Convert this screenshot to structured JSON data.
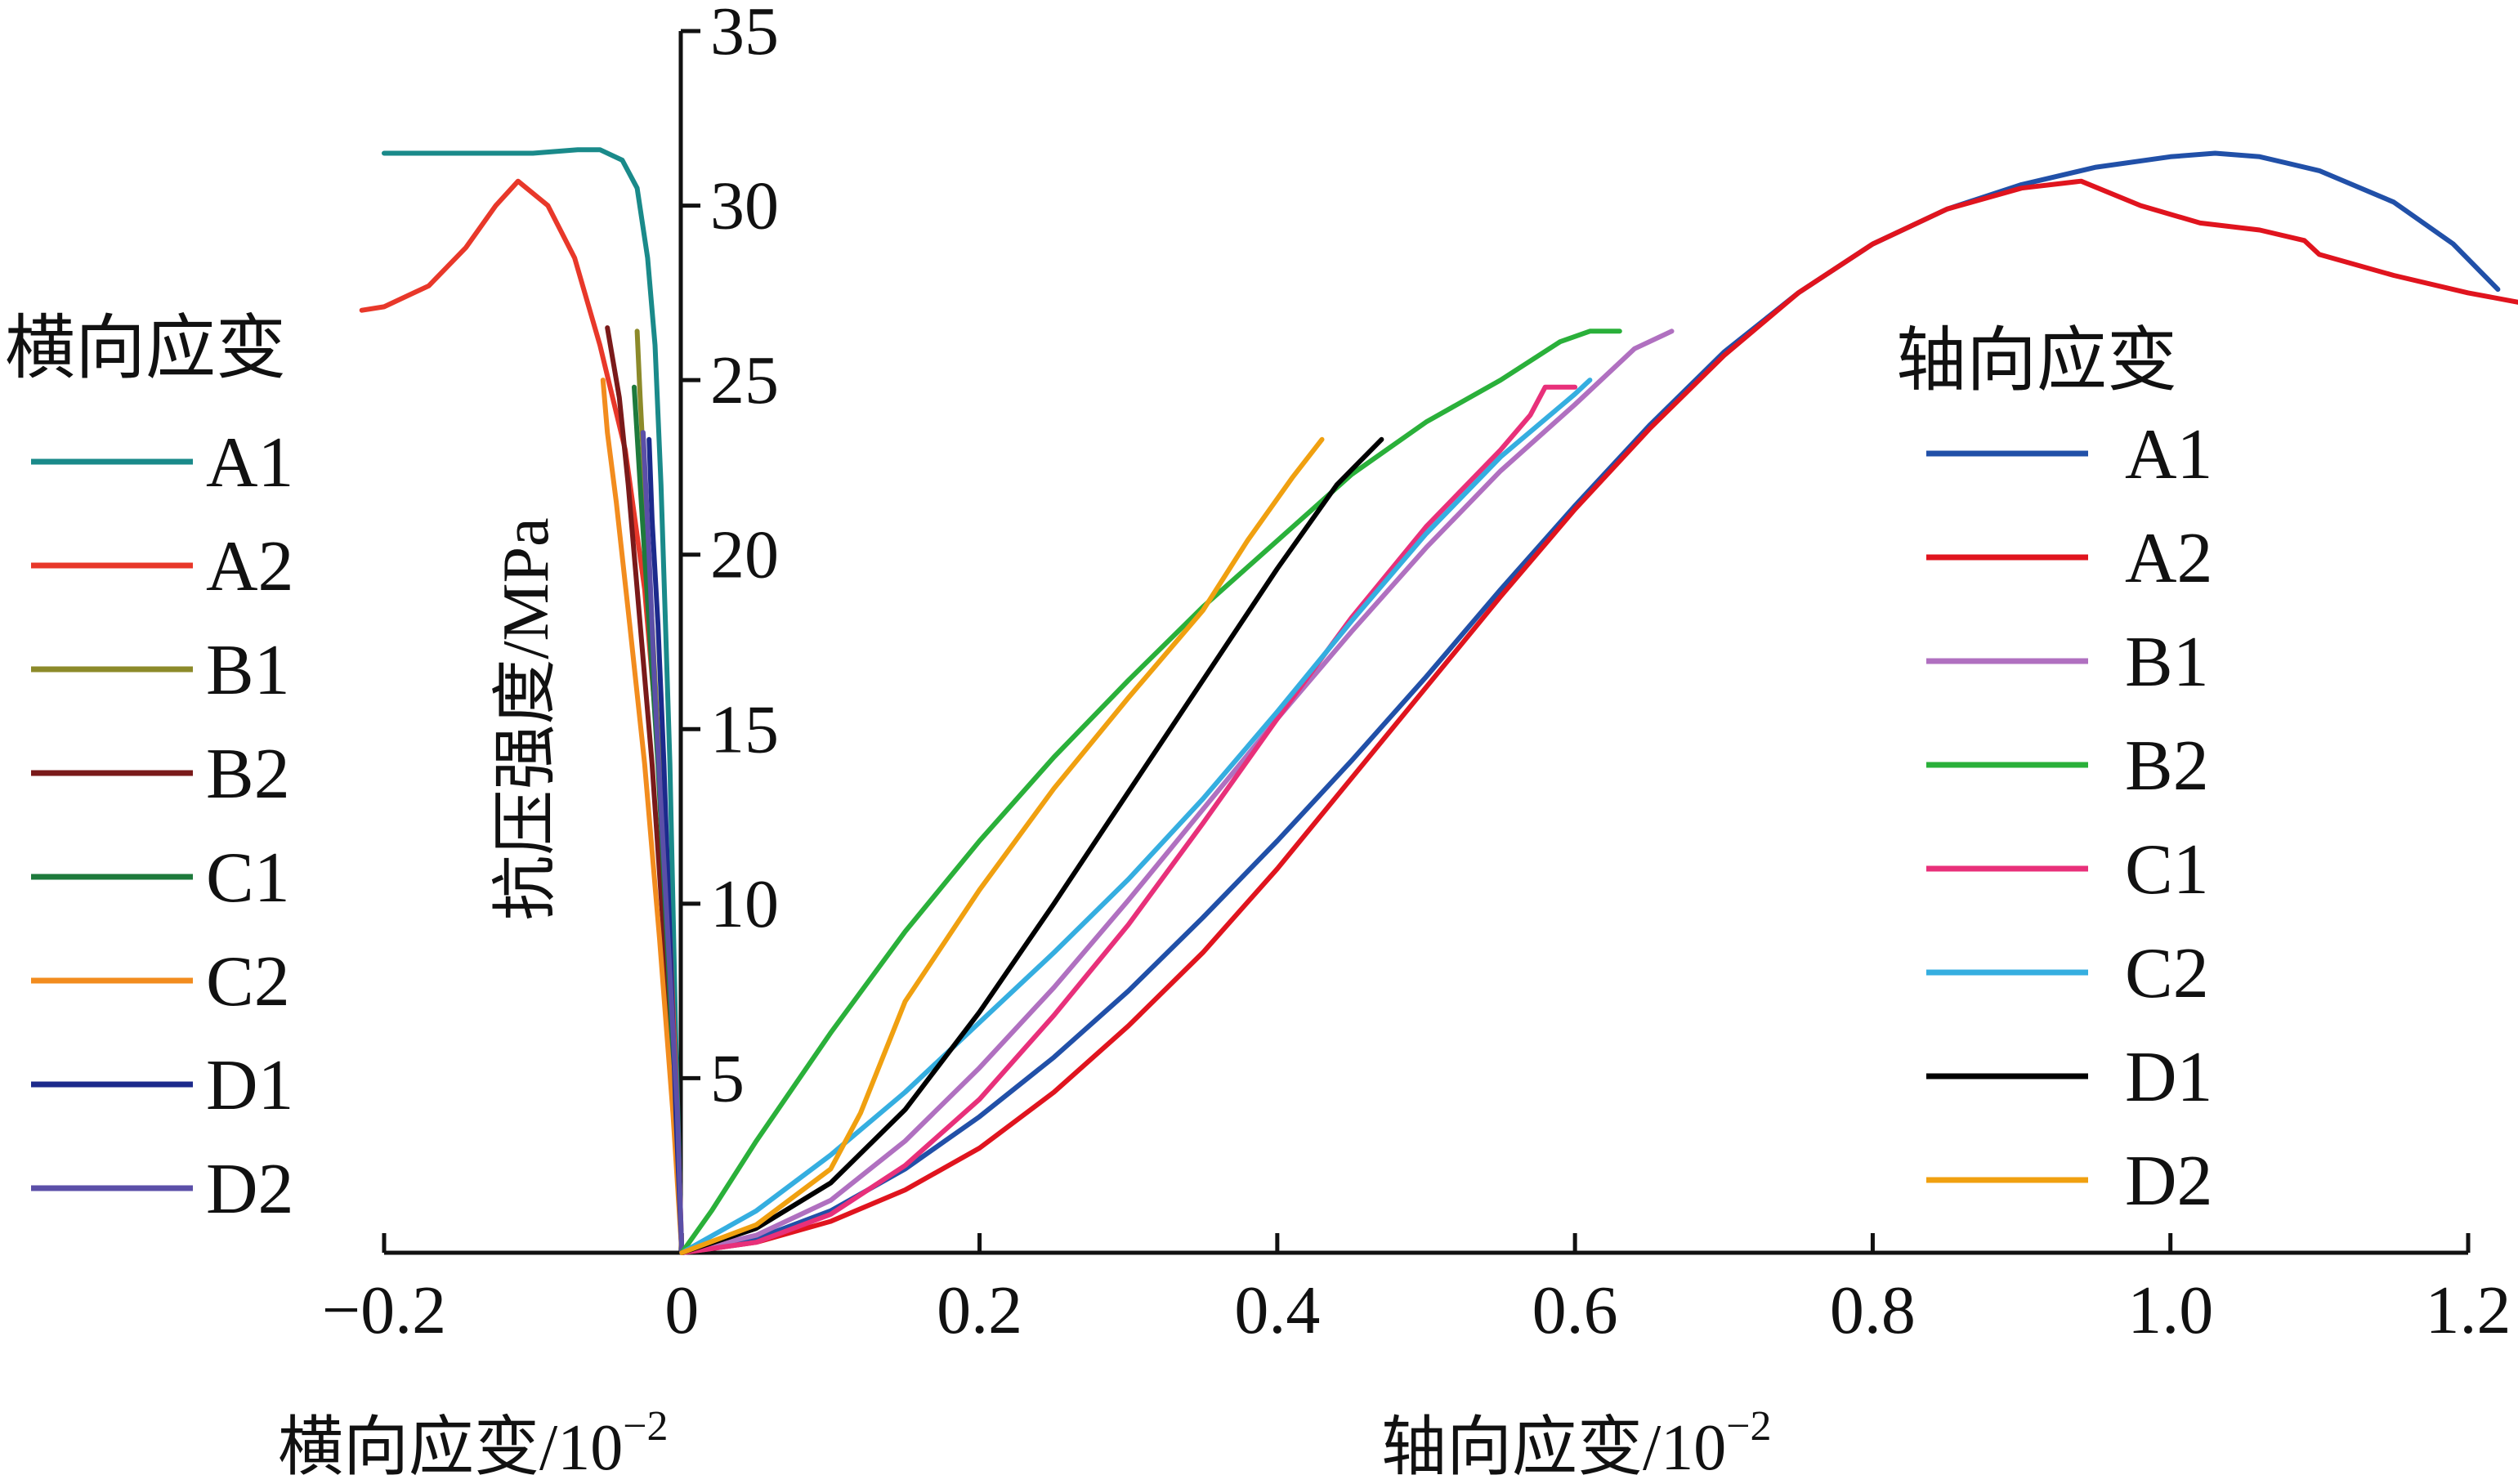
{
  "chart_data": {
    "type": "line",
    "x_axis": {
      "label": "横向应变/10",
      "label_secondary": "轴向应变/10",
      "exponent": "−2",
      "range": [
        -0.2,
        1.2
      ],
      "ticks": [
        {
          "value": -0.2,
          "label": "−0.2"
        },
        {
          "value": 0,
          "label": "0"
        },
        {
          "value": 0.2,
          "label": "0.2"
        },
        {
          "value": 0.4,
          "label": "0.4"
        },
        {
          "value": 0.6,
          "label": "0.6"
        },
        {
          "value": 0.8,
          "label": "0.8"
        },
        {
          "value": 1.0,
          "label": "1.0"
        },
        {
          "value": 1.2,
          "label": "1.2"
        }
      ]
    },
    "y_axis": {
      "label": "抗压强度/MPa",
      "range": [
        0,
        35
      ],
      "ticks": [
        5,
        10,
        15,
        20,
        25,
        30,
        35
      ]
    },
    "grid": false,
    "legend_left": {
      "title": "横向应变",
      "placement": "left",
      "entries": [
        {
          "name": "A1",
          "color": "#1a8a8a"
        },
        {
          "name": "A2",
          "color": "#e8382a"
        },
        {
          "name": "B1",
          "color": "#8c8a2a"
        },
        {
          "name": "B2",
          "color": "#7a1a1a"
        },
        {
          "name": "C1",
          "color": "#1e7a3c"
        },
        {
          "name": "C2",
          "color": "#f28c1e"
        },
        {
          "name": "D1",
          "color": "#1c2a8c"
        },
        {
          "name": "D2",
          "color": "#5b4fa8"
        }
      ]
    },
    "legend_right": {
      "title": "轴向应变",
      "placement": "right",
      "entries": [
        {
          "name": "A1",
          "color": "#2150a8"
        },
        {
          "name": "A2",
          "color": "#e0141e"
        },
        {
          "name": "B1",
          "color": "#b070c0"
        },
        {
          "name": "B2",
          "color": "#2ab03a"
        },
        {
          "name": "C1",
          "color": "#e8307a"
        },
        {
          "name": "C2",
          "color": "#35aee0"
        },
        {
          "name": "D1",
          "color": "#000000"
        },
        {
          "name": "D2",
          "color": "#f0a010"
        }
      ]
    },
    "lateral_series": [
      {
        "name": "A1",
        "color": "#1a8a8a",
        "points": [
          [
            0,
            0
          ],
          [
            -0.001,
            1
          ],
          [
            -0.002,
            3
          ],
          [
            -0.004,
            6
          ],
          [
            -0.006,
            10
          ],
          [
            -0.008,
            14
          ],
          [
            -0.011,
            18
          ],
          [
            -0.014,
            22
          ],
          [
            -0.018,
            26
          ],
          [
            -0.023,
            28.5
          ],
          [
            -0.03,
            30.5
          ],
          [
            -0.04,
            31.3
          ],
          [
            -0.055,
            31.6
          ],
          [
            -0.07,
            31.6
          ],
          [
            -0.1,
            31.5
          ],
          [
            -0.15,
            31.5
          ],
          [
            -0.2,
            31.5
          ]
        ]
      },
      {
        "name": "A2",
        "color": "#e8382a",
        "points": [
          [
            0,
            0
          ],
          [
            -0.003,
            4
          ],
          [
            -0.008,
            9
          ],
          [
            -0.015,
            14
          ],
          [
            -0.025,
            19
          ],
          [
            -0.038,
            23
          ],
          [
            -0.055,
            26
          ],
          [
            -0.072,
            28.5
          ],
          [
            -0.09,
            30
          ],
          [
            -0.11,
            30.7
          ],
          [
            -0.125,
            30
          ],
          [
            -0.145,
            28.8
          ],
          [
            -0.17,
            27.7
          ],
          [
            -0.2,
            27.1
          ],
          [
            -0.215,
            27
          ]
        ]
      },
      {
        "name": "B1",
        "color": "#8c8a2a",
        "points": [
          [
            0,
            0
          ],
          [
            -0.004,
            4
          ],
          [
            -0.009,
            9
          ],
          [
            -0.015,
            14
          ],
          [
            -0.02,
            18
          ],
          [
            -0.025,
            22
          ],
          [
            -0.028,
            24.5
          ],
          [
            -0.03,
            26.4
          ]
        ]
      },
      {
        "name": "B2",
        "color": "#7a1a1a",
        "points": [
          [
            0,
            0
          ],
          [
            -0.005,
            4
          ],
          [
            -0.012,
            9
          ],
          [
            -0.02,
            14
          ],
          [
            -0.028,
            18
          ],
          [
            -0.036,
            22
          ],
          [
            -0.042,
            24.5
          ],
          [
            -0.05,
            26.5
          ]
        ]
      },
      {
        "name": "C1",
        "color": "#1e7a3c",
        "points": [
          [
            0,
            0
          ],
          [
            -0.004,
            4
          ],
          [
            -0.01,
            9
          ],
          [
            -0.016,
            14
          ],
          [
            -0.022,
            18
          ],
          [
            -0.028,
            22
          ],
          [
            -0.032,
            24.8
          ]
        ]
      },
      {
        "name": "C2",
        "color": "#f28c1e",
        "points": [
          [
            0,
            0
          ],
          [
            -0.006,
            4
          ],
          [
            -0.015,
            9
          ],
          [
            -0.025,
            14
          ],
          [
            -0.035,
            18
          ],
          [
            -0.044,
            21.5
          ],
          [
            -0.05,
            23.5
          ],
          [
            -0.053,
            25
          ]
        ]
      },
      {
        "name": "D1",
        "color": "#1c2a8c",
        "points": [
          [
            0,
            0
          ],
          [
            -0.004,
            4
          ],
          [
            -0.008,
            9
          ],
          [
            -0.012,
            14
          ],
          [
            -0.016,
            18
          ],
          [
            -0.02,
            21
          ],
          [
            -0.022,
            23.3
          ]
        ]
      },
      {
        "name": "D2",
        "color": "#5b4fa8",
        "points": [
          [
            0,
            0
          ],
          [
            -0.003,
            4
          ],
          [
            -0.008,
            8
          ],
          [
            -0.013,
            12
          ],
          [
            -0.018,
            16
          ],
          [
            -0.022,
            20
          ],
          [
            -0.026,
            23.5
          ]
        ]
      }
    ],
    "axial_series": [
      {
        "name": "A1",
        "color": "#2150a8",
        "points": [
          [
            0,
            0
          ],
          [
            0.05,
            0.4
          ],
          [
            0.1,
            1.2
          ],
          [
            0.15,
            2.4
          ],
          [
            0.2,
            3.9
          ],
          [
            0.25,
            5.6
          ],
          [
            0.3,
            7.5
          ],
          [
            0.35,
            9.6
          ],
          [
            0.4,
            11.8
          ],
          [
            0.45,
            14.1
          ],
          [
            0.5,
            16.5
          ],
          [
            0.55,
            19
          ],
          [
            0.6,
            21.4
          ],
          [
            0.65,
            23.7
          ],
          [
            0.7,
            25.8
          ],
          [
            0.75,
            27.5
          ],
          [
            0.8,
            28.9
          ],
          [
            0.85,
            29.9
          ],
          [
            0.9,
            30.6
          ],
          [
            0.95,
            31.1
          ],
          [
            1.0,
            31.4
          ],
          [
            1.03,
            31.5
          ],
          [
            1.06,
            31.4
          ],
          [
            1.1,
            31.0
          ],
          [
            1.15,
            30.1
          ],
          [
            1.19,
            28.9
          ],
          [
            1.22,
            27.6
          ]
        ]
      },
      {
        "name": "A2",
        "color": "#e0141e",
        "points": [
          [
            0,
            0
          ],
          [
            0.05,
            0.3
          ],
          [
            0.1,
            0.9
          ],
          [
            0.15,
            1.8
          ],
          [
            0.2,
            3.0
          ],
          [
            0.25,
            4.6
          ],
          [
            0.3,
            6.5
          ],
          [
            0.35,
            8.6
          ],
          [
            0.4,
            11.0
          ],
          [
            0.45,
            13.6
          ],
          [
            0.5,
            16.2
          ],
          [
            0.55,
            18.8
          ],
          [
            0.6,
            21.3
          ],
          [
            0.65,
            23.6
          ],
          [
            0.7,
            25.7
          ],
          [
            0.75,
            27.5
          ],
          [
            0.8,
            28.9
          ],
          [
            0.85,
            29.9
          ],
          [
            0.9,
            30.5
          ],
          [
            0.94,
            30.7
          ],
          [
            0.98,
            30.0
          ],
          [
            1.02,
            29.5
          ],
          [
            1.06,
            29.3
          ],
          [
            1.09,
            29.0
          ],
          [
            1.1,
            28.6
          ],
          [
            1.15,
            28.0
          ],
          [
            1.2,
            27.5
          ],
          [
            1.25,
            27.1
          ]
        ]
      },
      {
        "name": "B1",
        "color": "#b070c0",
        "points": [
          [
            0,
            0
          ],
          [
            0.05,
            0.5
          ],
          [
            0.1,
            1.5
          ],
          [
            0.15,
            3.2
          ],
          [
            0.2,
            5.3
          ],
          [
            0.25,
            7.6
          ],
          [
            0.3,
            10.1
          ],
          [
            0.35,
            12.7
          ],
          [
            0.4,
            15.3
          ],
          [
            0.45,
            17.8
          ],
          [
            0.5,
            20.2
          ],
          [
            0.55,
            22.4
          ],
          [
            0.6,
            24.3
          ],
          [
            0.64,
            25.9
          ],
          [
            0.665,
            26.4
          ]
        ]
      },
      {
        "name": "B2",
        "color": "#2ab03a",
        "points": [
          [
            0,
            0
          ],
          [
            0.02,
            1.2
          ],
          [
            0.05,
            3.2
          ],
          [
            0.1,
            6.3
          ],
          [
            0.15,
            9.2
          ],
          [
            0.2,
            11.8
          ],
          [
            0.25,
            14.2
          ],
          [
            0.3,
            16.4
          ],
          [
            0.35,
            18.5
          ],
          [
            0.4,
            20.4
          ],
          [
            0.45,
            22.3
          ],
          [
            0.5,
            23.8
          ],
          [
            0.55,
            25
          ],
          [
            0.59,
            26.1
          ],
          [
            0.61,
            26.4
          ],
          [
            0.63,
            26.4
          ]
        ]
      },
      {
        "name": "C1",
        "color": "#e8307a",
        "points": [
          [
            0,
            0
          ],
          [
            0.05,
            0.3
          ],
          [
            0.1,
            1.1
          ],
          [
            0.15,
            2.5
          ],
          [
            0.2,
            4.4
          ],
          [
            0.25,
            6.8
          ],
          [
            0.3,
            9.4
          ],
          [
            0.35,
            12.3
          ],
          [
            0.4,
            15.3
          ],
          [
            0.45,
            18.2
          ],
          [
            0.5,
            20.8
          ],
          [
            0.55,
            23.0
          ],
          [
            0.57,
            24.0
          ],
          [
            0.58,
            24.8
          ],
          [
            0.6,
            24.8
          ]
        ]
      },
      {
        "name": "C2",
        "color": "#35aee0",
        "points": [
          [
            0,
            0
          ],
          [
            0.05,
            1.2
          ],
          [
            0.1,
            2.8
          ],
          [
            0.15,
            4.6
          ],
          [
            0.2,
            6.6
          ],
          [
            0.25,
            8.6
          ],
          [
            0.3,
            10.7
          ],
          [
            0.35,
            13.0
          ],
          [
            0.4,
            15.5
          ],
          [
            0.45,
            18.1
          ],
          [
            0.5,
            20.6
          ],
          [
            0.55,
            22.8
          ],
          [
            0.6,
            24.6
          ],
          [
            0.61,
            25.0
          ]
        ]
      },
      {
        "name": "D1",
        "color": "#000000",
        "points": [
          [
            0,
            0
          ],
          [
            0.05,
            0.7
          ],
          [
            0.1,
            2.0
          ],
          [
            0.15,
            4.1
          ],
          [
            0.2,
            6.9
          ],
          [
            0.25,
            10.0
          ],
          [
            0.3,
            13.2
          ],
          [
            0.35,
            16.4
          ],
          [
            0.4,
            19.6
          ],
          [
            0.44,
            22.0
          ],
          [
            0.47,
            23.3
          ]
        ]
      },
      {
        "name": "D2",
        "color": "#f0a010",
        "points": [
          [
            0,
            0
          ],
          [
            0.05,
            0.8
          ],
          [
            0.1,
            2.4
          ],
          [
            0.12,
            4.0
          ],
          [
            0.15,
            7.2
          ],
          [
            0.2,
            10.4
          ],
          [
            0.25,
            13.3
          ],
          [
            0.3,
            15.9
          ],
          [
            0.35,
            18.4
          ],
          [
            0.38,
            20.4
          ],
          [
            0.41,
            22.2
          ],
          [
            0.43,
            23.3
          ]
        ]
      }
    ]
  }
}
